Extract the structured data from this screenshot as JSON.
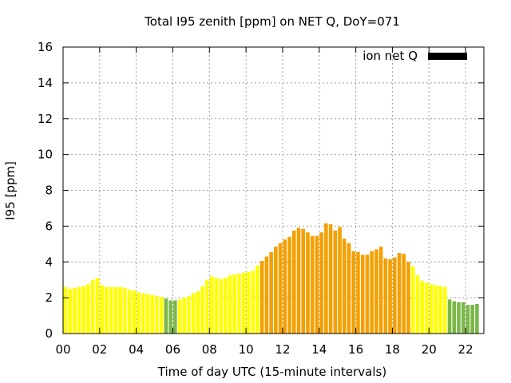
{
  "chart_data": {
    "type": "bar",
    "title": "Total I95 zenith [ppm] on NET Q, DoY=071",
    "xlabel": "Time of day UTC (15-minute intervals)",
    "ylabel": "I95 [ppm]",
    "xlim": [
      0,
      23
    ],
    "ylim": [
      0,
      16
    ],
    "x_ticks": [
      "00",
      "02",
      "04",
      "06",
      "08",
      "10",
      "12",
      "14",
      "16",
      "18",
      "20",
      "22"
    ],
    "y_ticks": [
      "0",
      "2",
      "4",
      "6",
      "8",
      "10",
      "12",
      "14",
      "16"
    ],
    "grid": true,
    "legend": {
      "position": "top-right",
      "entries": [
        {
          "label": "ion net Q",
          "color": "#000000"
        }
      ]
    },
    "bin_width_hours": 0.25,
    "series": [
      {
        "name": "ion net Q",
        "values": [
          2.6,
          2.5,
          2.55,
          2.6,
          2.65,
          2.75,
          3.0,
          3.1,
          2.7,
          2.6,
          2.6,
          2.6,
          2.6,
          2.55,
          2.45,
          2.4,
          2.3,
          2.25,
          2.2,
          2.15,
          2.1,
          2.05,
          1.95,
          1.85,
          1.85,
          1.9,
          2.0,
          2.1,
          2.25,
          2.35,
          2.65,
          3.0,
          3.2,
          3.1,
          3.05,
          3.1,
          3.25,
          3.3,
          3.35,
          3.4,
          3.45,
          3.5,
          3.8,
          4.05,
          4.3,
          4.55,
          4.85,
          5.05,
          5.25,
          5.4,
          5.75,
          5.9,
          5.85,
          5.65,
          5.45,
          5.45,
          5.65,
          6.15,
          6.1,
          5.75,
          5.95,
          5.3,
          5.05,
          4.6,
          4.55,
          4.4,
          4.4,
          4.6,
          4.7,
          4.85,
          4.2,
          4.15,
          4.25,
          4.5,
          4.45,
          4.0,
          3.75,
          3.25,
          2.95,
          2.85,
          2.75,
          2.7,
          2.65,
          2.6,
          1.9,
          1.8,
          1.75,
          1.75,
          1.6,
          1.6,
          1.65
        ]
      }
    ],
    "color_scale": {
      "green": "#7ab648",
      "yellow": "#ffff00",
      "orange": "#f5a000"
    },
    "bar_colors": [
      "yellow",
      "yellow",
      "yellow",
      "yellow",
      "yellow",
      "yellow",
      "yellow",
      "yellow",
      "yellow",
      "yellow",
      "yellow",
      "yellow",
      "yellow",
      "yellow",
      "yellow",
      "yellow",
      "yellow",
      "yellow",
      "yellow",
      "yellow",
      "yellow",
      "yellow",
      "green",
      "green",
      "green",
      "yellow",
      "yellow",
      "yellow",
      "yellow",
      "yellow",
      "yellow",
      "yellow",
      "yellow",
      "yellow",
      "yellow",
      "yellow",
      "yellow",
      "yellow",
      "yellow",
      "yellow",
      "yellow",
      "yellow",
      "yellow",
      "orange",
      "orange",
      "orange",
      "orange",
      "orange",
      "orange",
      "orange",
      "orange",
      "orange",
      "orange",
      "orange",
      "orange",
      "orange",
      "orange",
      "orange",
      "orange",
      "orange",
      "orange",
      "orange",
      "orange",
      "orange",
      "orange",
      "orange",
      "orange",
      "orange",
      "orange",
      "orange",
      "orange",
      "orange",
      "orange",
      "orange",
      "orange",
      "orange",
      "yellow",
      "yellow",
      "yellow",
      "yellow",
      "yellow",
      "yellow",
      "yellow",
      "yellow",
      "green",
      "green",
      "green",
      "green",
      "green",
      "green",
      "green"
    ]
  }
}
